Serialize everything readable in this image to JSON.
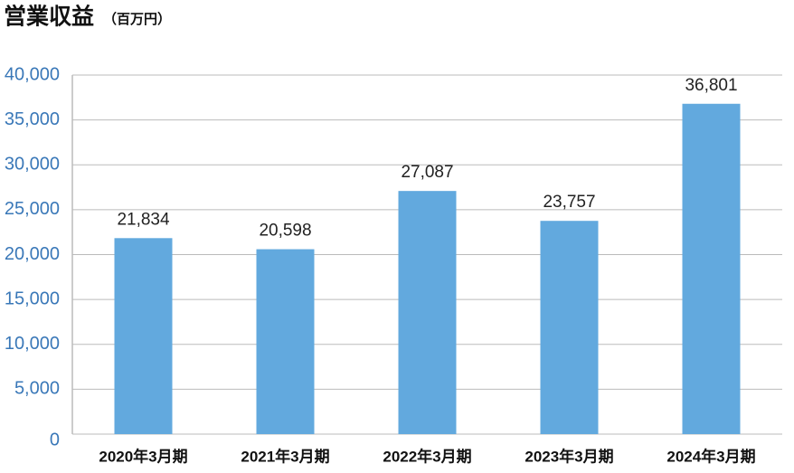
{
  "chart_data": {
    "type": "bar",
    "title": "営業収益",
    "subtitle": "（百万円）",
    "categories": [
      "2020年3月期",
      "2021年3月期",
      "2022年3月期",
      "2023年3月期",
      "2024年3月期"
    ],
    "values": [
      21834,
      20598,
      27087,
      23757,
      36801
    ],
    "value_labels": [
      "21,834",
      "20,598",
      "27,087",
      "23,757",
      "36,801"
    ],
    "color": "#62a9de",
    "ylim": [
      0,
      40000
    ],
    "yticks": [
      0,
      {
        "value": 5000,
        "label": "5,000"
      },
      {
        "value": 10000,
        "label": "10,000"
      },
      {
        "value": 15000,
        "label": "15,000"
      },
      {
        "value": 20000,
        "label": "20,000"
      },
      {
        "value": 25000,
        "label": "25,000"
      },
      {
        "value": 30000,
        "label": "30,000"
      },
      {
        "value": 35000,
        "label": "35,000"
      },
      {
        "value": 40000,
        "label": "40,000"
      }
    ],
    "grid": true
  }
}
